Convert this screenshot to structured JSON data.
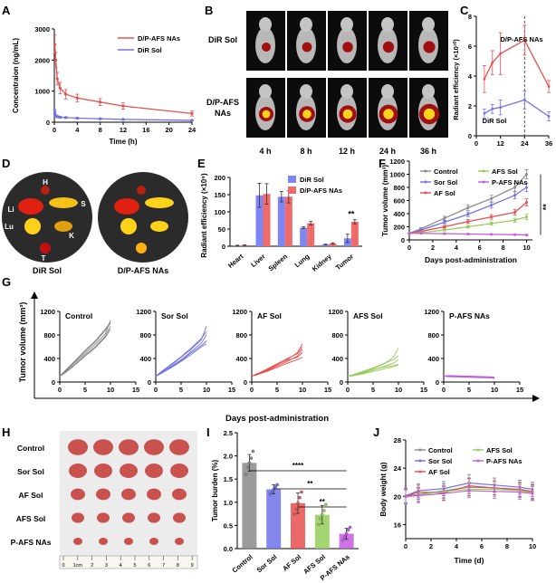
{
  "colors": {
    "red": "#e8504f",
    "blue": "#6f73e8",
    "gray": "#8a8a8a",
    "green": "#95cc5a",
    "magenta": "#c45be0",
    "orange": "#f0a020",
    "bar_blue": "#7d86f2",
    "bar_red": "#f06a6a",
    "axis": "#000000",
    "dashed": "#555555"
  },
  "panels": {
    "A": {
      "letter": "A"
    },
    "B": {
      "letter": "B"
    },
    "C": {
      "letter": "C"
    },
    "D": {
      "letter": "D"
    },
    "E": {
      "letter": "E"
    },
    "F": {
      "letter": "F"
    },
    "G": {
      "letter": "G"
    },
    "H": {
      "letter": "H"
    },
    "I": {
      "letter": "I"
    },
    "J": {
      "letter": "J"
    }
  },
  "imaging_B": {
    "rows": [
      "DiR Sol",
      "D/P-AFS NAs"
    ],
    "timepoints": [
      "4 h",
      "8 h",
      "12 h",
      "24 h",
      "36 h"
    ]
  },
  "imaging_D": {
    "groups": [
      "DiR Sol",
      "D/P-AFS NAs"
    ],
    "organ_labels": [
      "H",
      "Li",
      "S",
      "Lu",
      "K",
      "T"
    ]
  },
  "photo_H": {
    "groups": [
      "Control",
      "Sor Sol",
      "AF Sol",
      "AFS Sol",
      "P-AFS NAs"
    ],
    "ruler_labels": [
      "0",
      "1cm",
      "2",
      "3",
      "4",
      "5",
      "6",
      "7",
      "8",
      "9"
    ]
  },
  "chart_data": [
    {
      "id": "A",
      "type": "line",
      "xlabel": "Time (h)",
      "ylabel": "Concentraion (ng/mL)",
      "xlim": [
        0,
        24
      ],
      "ylim": [
        0,
        3000
      ],
      "xticks": [
        0,
        4,
        8,
        12,
        16,
        20,
        24
      ],
      "yticks": [
        0,
        1000,
        2000,
        3000
      ],
      "legend": "top-right",
      "x": [
        0.083,
        0.25,
        0.5,
        1,
        2,
        4,
        8,
        12,
        24
      ],
      "series": [
        {
          "name": "D/P-AFS NAs",
          "color": "red",
          "values": [
            2500,
            2000,
            1400,
            1100,
            900,
            780,
            650,
            520,
            280
          ],
          "err": [
            300,
            250,
            200,
            180,
            150,
            120,
            110,
            100,
            80
          ]
        },
        {
          "name": "DiR Sol",
          "color": "blue",
          "values": [
            350,
            200,
            180,
            160,
            150,
            130,
            110,
            90,
            60
          ],
          "err": [
            60,
            40,
            30,
            30,
            25,
            20,
            20,
            15,
            10
          ]
        }
      ]
    },
    {
      "id": "C",
      "type": "line",
      "ylabel": "Radiant efficiency (×10¹⁰)",
      "xlim": [
        0,
        36
      ],
      "ylim": [
        0,
        8
      ],
      "xticks": [
        0,
        12,
        24,
        36
      ],
      "yticks": [
        0,
        2,
        4,
        6,
        8
      ],
      "x": [
        4,
        8,
        12,
        24,
        36
      ],
      "marker_x": 24,
      "series": [
        {
          "name": "D/P-AFS NAs",
          "color": "red",
          "values": [
            3.8,
            4.9,
            5.5,
            6.4,
            3.3
          ],
          "err": [
            0.9,
            0.8,
            1.4,
            1.0,
            0.4
          ]
        },
        {
          "name": "DiR Sol",
          "color": "blue",
          "values": [
            1.5,
            1.8,
            1.9,
            2.4,
            1.3
          ],
          "err": [
            0.3,
            0.3,
            0.5,
            0.6,
            0.3
          ]
        }
      ]
    },
    {
      "id": "E",
      "type": "bar",
      "ylabel": "Radiant efficiency (×10⁹)",
      "ylim": [
        0,
        200
      ],
      "yticks": [
        0,
        50,
        100,
        150,
        200
      ],
      "categories": [
        "Heart",
        "Liver",
        "Spleen",
        "Lung",
        "Kidney",
        "Tumor"
      ],
      "series": [
        {
          "name": "DiR Sol",
          "color": "bar_blue",
          "values": [
            2,
            148,
            144,
            54,
            5,
            23
          ],
          "err": [
            1,
            35,
            15,
            3,
            1,
            12
          ]
        },
        {
          "name": "D/P-AFS NAs",
          "color": "bar_red",
          "values": [
            3,
            152,
            144,
            67,
            8,
            71
          ],
          "err": [
            1,
            30,
            18,
            5,
            2,
            6
          ]
        }
      ],
      "annotation": "**"
    },
    {
      "id": "F",
      "type": "line",
      "xlabel": "Days post-administration",
      "ylabel": "Tumor volume (mm³)",
      "xlim": [
        0,
        10.5
      ],
      "ylim": [
        0,
        1200
      ],
      "xticks": [
        0,
        2,
        4,
        6,
        8,
        10
      ],
      "yticks": [
        0,
        200,
        400,
        600,
        800,
        1000,
        1200
      ],
      "x": [
        0,
        1,
        3,
        5,
        7,
        9,
        10
      ],
      "series": [
        {
          "name": "Control",
          "color": "gray",
          "values": [
            100,
            170,
            330,
            490,
            630,
            800,
            1000
          ],
          "err": [
            5,
            15,
            30,
            40,
            50,
            60,
            70
          ]
        },
        {
          "name": "Sor Sol",
          "color": "blue",
          "values": [
            100,
            150,
            270,
            390,
            530,
            680,
            800
          ],
          "err": [
            5,
            15,
            25,
            35,
            45,
            55,
            65
          ]
        },
        {
          "name": "AF Sol",
          "color": "red",
          "values": [
            100,
            130,
            200,
            280,
            350,
            420,
            570
          ],
          "err": [
            5,
            10,
            20,
            30,
            35,
            45,
            55
          ]
        },
        {
          "name": "AFS Sol",
          "color": "green",
          "values": [
            100,
            110,
            150,
            200,
            250,
            300,
            350
          ],
          "err": [
            5,
            10,
            15,
            20,
            25,
            30,
            40
          ]
        },
        {
          "name": "P-AFS NAs",
          "color": "magenta",
          "values": [
            100,
            100,
            95,
            90,
            85,
            80,
            75
          ],
          "err": [
            5,
            5,
            5,
            5,
            5,
            5,
            5
          ]
        }
      ],
      "annotation": "**"
    },
    {
      "id": "G",
      "type": "line",
      "xlabel": "Days post-administration",
      "ylabel": "Tumor volume (mm³)",
      "xlim": [
        0,
        15
      ],
      "ylim": [
        0,
        1200
      ],
      "xticks": [
        0,
        5,
        10,
        15
      ],
      "yticks": [
        0,
        400,
        800,
        1200
      ],
      "x": [
        0,
        1,
        3,
        5,
        7,
        9,
        10
      ],
      "subplots": [
        {
          "name": "Control",
          "color": "gray",
          "curves": [
            [
              100,
              180,
              350,
              520,
              680,
              880,
              1000
            ],
            [
              100,
              170,
              330,
              490,
              640,
              820,
              1050
            ],
            [
              100,
              160,
              300,
              460,
              600,
              780,
              950
            ],
            [
              100,
              190,
              360,
              540,
              700,
              900,
              1020
            ],
            [
              100,
              150,
              290,
              440,
              580,
              760,
              900
            ]
          ]
        },
        {
          "name": "Sor Sol",
          "color": "blue",
          "curves": [
            [
              100,
              160,
              280,
              420,
              560,
              720,
              950
            ],
            [
              100,
              150,
              260,
              380,
              520,
              660,
              800
            ],
            [
              100,
              140,
              250,
              360,
              500,
              620,
              700
            ],
            [
              100,
              170,
              300,
              430,
              580,
              740,
              860
            ],
            [
              100,
              145,
              240,
              350,
              470,
              600,
              650
            ]
          ]
        },
        {
          "name": "AF Sol",
          "color": "red",
          "curves": [
            [
              100,
              130,
              200,
              290,
              380,
              500,
              650
            ],
            [
              100,
              120,
              190,
              270,
              350,
              440,
              560
            ],
            [
              100,
              140,
              210,
              300,
              370,
              420,
              500
            ],
            [
              100,
              125,
              180,
              250,
              320,
              380,
              420
            ],
            [
              100,
              135,
              220,
              310,
              400,
              480,
              600
            ]
          ]
        },
        {
          "name": "AFS Sol",
          "color": "green",
          "curves": [
            [
              100,
              120,
              170,
              230,
              300,
              420,
              580
            ],
            [
              100,
              110,
              150,
              200,
              260,
              320,
              380
            ],
            [
              100,
              115,
              160,
              210,
              250,
              280,
              300
            ],
            [
              100,
              105,
              140,
              180,
              220,
              260,
              290
            ],
            [
              100,
              125,
              180,
              240,
              310,
              380,
              450
            ]
          ]
        },
        {
          "name": "P-AFS NAs",
          "color": "magenta",
          "curves": [
            [
              100,
              105,
              100,
              95,
              90,
              85,
              80
            ],
            [
              100,
              95,
              90,
              85,
              80,
              75,
              70
            ],
            [
              100,
              110,
              105,
              100,
              95,
              90,
              85
            ],
            [
              100,
              100,
              95,
              90,
              85,
              80,
              60
            ],
            [
              100,
              90,
              85,
              80,
              75,
              70,
              65
            ]
          ]
        }
      ]
    },
    {
      "id": "I",
      "type": "bar",
      "ylabel": "Tumor burden (%)",
      "ylim": [
        0,
        2.5
      ],
      "yticks": [
        0.0,
        0.5,
        1.0,
        1.5,
        2.0,
        2.5
      ],
      "categories": [
        "Control",
        "Sor Sol",
        "AF Sol",
        "AFS Sol",
        "P-AFS NAs"
      ],
      "values": [
        1.85,
        1.28,
        0.98,
        0.73,
        0.32
      ],
      "err": [
        0.18,
        0.1,
        0.22,
        0.2,
        0.12
      ],
      "colors": [
        "gray",
        "blue",
        "red",
        "green",
        "magenta"
      ],
      "points": [
        [
          1.6,
          1.75,
          1.85,
          1.95,
          2.1
        ],
        [
          1.18,
          1.22,
          1.28,
          1.33,
          1.38
        ],
        [
          0.75,
          0.85,
          0.98,
          1.1,
          1.22
        ],
        [
          0.52,
          0.65,
          0.73,
          0.82,
          0.95
        ],
        [
          0.18,
          0.25,
          0.32,
          0.4,
          0.46
        ]
      ],
      "comparisons": [
        {
          "from": 0,
          "to": 4,
          "label": "****"
        },
        {
          "from": 1,
          "to": 4,
          "label": "**"
        },
        {
          "from": 2,
          "to": 4,
          "label": "**"
        }
      ]
    },
    {
      "id": "J",
      "type": "line",
      "xlabel": "Time (d)",
      "ylabel": "Body weight (g)",
      "xlim": [
        0,
        10
      ],
      "ylim": [
        14,
        28
      ],
      "xticks": [
        0,
        2,
        4,
        6,
        8,
        10
      ],
      "yticks": [
        16,
        20,
        24,
        28
      ],
      "x": [
        0,
        1,
        3,
        5,
        7,
        9,
        10
      ],
      "series": [
        {
          "name": "Control",
          "color": "gray",
          "values": [
            20.0,
            20.3,
            20.8,
            21.3,
            21.2,
            20.9,
            20.6
          ],
          "err": [
            1.0,
            1.0,
            1.0,
            1.2,
            1.0,
            1.0,
            1.0
          ]
        },
        {
          "name": "Sor Sol",
          "color": "blue",
          "values": [
            20.1,
            20.8,
            21.1,
            21.9,
            21.6,
            21.3,
            21.0
          ],
          "err": [
            1.0,
            1.0,
            1.0,
            1.2,
            1.0,
            1.0,
            1.0
          ]
        },
        {
          "name": "AF Sol",
          "color": "red",
          "values": [
            20.0,
            20.6,
            20.5,
            21.5,
            21.2,
            21.0,
            20.7
          ],
          "err": [
            1.0,
            1.0,
            1.0,
            1.1,
            1.0,
            1.0,
            1.0
          ]
        },
        {
          "name": "AFS Sol",
          "color": "green",
          "values": [
            19.9,
            20.2,
            20.7,
            21.0,
            21.0,
            20.8,
            20.5
          ],
          "err": [
            1.0,
            1.0,
            1.0,
            1.0,
            1.0,
            1.0,
            1.0
          ]
        },
        {
          "name": "P-AFS NAs",
          "color": "magenta",
          "values": [
            20.0,
            20.1,
            20.4,
            20.8,
            20.7,
            20.6,
            20.4
          ],
          "err": [
            1.0,
            1.0,
            1.0,
            1.0,
            1.0,
            1.0,
            1.0
          ]
        }
      ]
    }
  ]
}
